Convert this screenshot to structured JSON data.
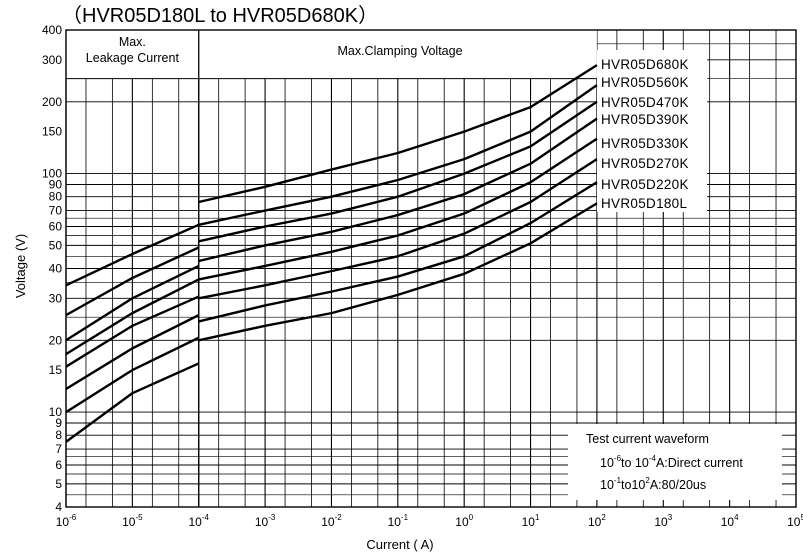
{
  "chart_data": {
    "type": "line",
    "title": "（HVR05D180L to HVR05D680K）",
    "xlabel": "Current ( A)",
    "ylabel": "Voltage  (V)",
    "x_scale": "log",
    "y_scale": "log",
    "xlim": [
      1e-06,
      100000.0
    ],
    "ylim": [
      4,
      400
    ],
    "grid": true,
    "x_tick_exponents": [
      "-6",
      "-5",
      "-4",
      "-3",
      "-2",
      "-1",
      "0",
      "1",
      "2",
      "3",
      "4",
      "5"
    ],
    "x_tick_base": "10",
    "y_tick_values": [
      4,
      5,
      6,
      7,
      8,
      9,
      10,
      15,
      20,
      30,
      40,
      50,
      60,
      70,
      80,
      90,
      100,
      150,
      200,
      300,
      400
    ],
    "y_tick_labels": [
      "4",
      "5",
      "6",
      "7",
      "8",
      "9",
      "10",
      "15",
      "20",
      "30",
      "40",
      "50",
      "60",
      "70",
      "80",
      "90",
      "100",
      "150",
      "200",
      "300",
      "400"
    ],
    "regions": {
      "leakage_line1": "Max.",
      "leakage_line2": "Leakage Current",
      "clamping": "Max.Clamping Voltage"
    },
    "test_note": {
      "heading": "Test current waveform",
      "line1_base1": "10",
      "line1_exp1": "-6",
      "line1_mid": "to 10",
      "line1_exp2": "-4",
      "line1_end": "A:Direct current",
      "line2_base1": "10",
      "line2_exp1": "-1",
      "line2_mid": "to10",
      "line2_exp2": "2",
      "line2_end": "A:80/20us"
    },
    "legend_position": "top-right",
    "series": [
      {
        "name": "HVR05D680K",
        "leakage": [
          [
            1e-06,
            34
          ],
          [
            1e-05,
            46
          ],
          [
            0.0001,
            61
          ]
        ],
        "clamping": [
          [
            0.0001,
            76
          ],
          [
            0.001,
            88
          ],
          [
            0.01,
            104
          ],
          [
            0.1,
            122
          ],
          [
            1,
            150
          ],
          [
            10,
            190
          ],
          [
            100,
            285
          ]
        ]
      },
      {
        "name": "HVR05D560K",
        "leakage": [
          [
            1e-06,
            25.5
          ],
          [
            1e-05,
            36.5
          ],
          [
            0.0001,
            49
          ]
        ],
        "clamping": [
          [
            0.0001,
            61
          ],
          [
            0.001,
            70
          ],
          [
            0.01,
            80
          ],
          [
            0.1,
            94
          ],
          [
            1,
            115
          ],
          [
            10,
            150
          ],
          [
            100,
            235
          ]
        ]
      },
      {
        "name": "HVR05D470K",
        "leakage": [
          [
            1e-06,
            20
          ],
          [
            1e-05,
            30
          ],
          [
            0.0001,
            41
          ]
        ],
        "clamping": [
          [
            0.0001,
            52
          ],
          [
            0.001,
            60
          ],
          [
            0.01,
            68
          ],
          [
            0.1,
            80
          ],
          [
            1,
            100
          ],
          [
            10,
            130
          ],
          [
            100,
            200
          ]
        ]
      },
      {
        "name": "HVR05D390K",
        "leakage": [
          [
            1e-06,
            17.5
          ],
          [
            1e-05,
            26
          ],
          [
            0.0001,
            36
          ]
        ],
        "clamping": [
          [
            0.0001,
            43
          ],
          [
            0.001,
            50
          ],
          [
            0.01,
            57
          ],
          [
            0.1,
            67
          ],
          [
            1,
            82
          ],
          [
            10,
            110
          ],
          [
            100,
            170
          ]
        ]
      },
      {
        "name": "HVR05D330K",
        "leakage": [
          [
            1e-06,
            15.5
          ],
          [
            1e-05,
            23
          ],
          [
            0.0001,
            30.5
          ]
        ],
        "clamping": [
          [
            0.0001,
            36
          ],
          [
            0.001,
            41
          ],
          [
            0.01,
            47
          ],
          [
            0.1,
            55
          ],
          [
            1,
            68
          ],
          [
            10,
            92
          ],
          [
            100,
            140
          ]
        ]
      },
      {
        "name": "HVR05D270K",
        "leakage": [
          [
            1e-06,
            12.5
          ],
          [
            1e-05,
            18.5
          ],
          [
            0.0001,
            25.5
          ]
        ],
        "clamping": [
          [
            0.0001,
            30
          ],
          [
            0.001,
            34
          ],
          [
            0.01,
            39
          ],
          [
            0.1,
            45
          ],
          [
            1,
            56
          ],
          [
            10,
            76
          ],
          [
            100,
            115
          ]
        ]
      },
      {
        "name": "HVR05D220K",
        "leakage": [
          [
            1e-06,
            10
          ],
          [
            1e-05,
            15
          ],
          [
            0.0001,
            20.5
          ]
        ],
        "clamping": [
          [
            0.0001,
            24
          ],
          [
            0.001,
            28
          ],
          [
            0.01,
            32
          ],
          [
            0.1,
            37
          ],
          [
            1,
            45
          ],
          [
            10,
            62
          ],
          [
            100,
            92
          ]
        ]
      },
      {
        "name": "HVR05D180L",
        "leakage": [
          [
            1e-06,
            7.5
          ],
          [
            1e-05,
            12
          ],
          [
            0.0001,
            16
          ]
        ],
        "clamping": [
          [
            0.0001,
            20
          ],
          [
            0.001,
            23
          ],
          [
            0.01,
            26
          ],
          [
            0.1,
            31
          ],
          [
            1,
            38
          ],
          [
            10,
            51
          ],
          [
            100,
            75
          ]
        ]
      }
    ]
  }
}
